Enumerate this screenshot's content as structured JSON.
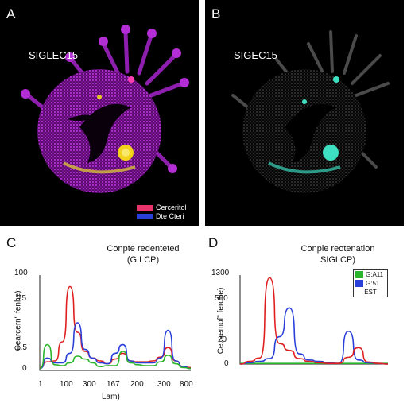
{
  "panelA": {
    "letter": "A",
    "label": "SIGLEC15",
    "legend": [
      {
        "label": "Cerceritol",
        "color": "#e8336b"
      },
      {
        "label": "Dte Cteri",
        "color": "#2a3fd8"
      }
    ]
  },
  "panelB": {
    "letter": "B",
    "label": "SIGEC15"
  },
  "panelC": {
    "letter": "C",
    "title_line1": "Conpte redenteted",
    "title_line2": "(GILCP)",
    "ylabel": "Cearcern\" fenhe)",
    "xlabel": "Lam)",
    "y_ticks": [
      "100",
      "75",
      "1.5",
      "0"
    ],
    "x_ticks": [
      "1",
      "100",
      "300",
      "167",
      "200",
      "300",
      "800"
    ]
  },
  "panelD": {
    "letter": "D",
    "title_line1": "Conple reotenation",
    "title_line2": "SIGLCP)",
    "ylabel": "Cecaemof\" ferohe)",
    "y_ticks": [
      "1300",
      "500",
      "20",
      "0"
    ],
    "legend": [
      {
        "label": "G:A11",
        "color": "#2bb52b"
      },
      {
        "label": "G:51",
        "color": "#2a3fd8"
      },
      {
        "label": "EST",
        "color": "#ffffff"
      }
    ]
  },
  "chart_data": [
    {
      "type": "line",
      "title": "Conpte redenteted (GILCP)",
      "xlabel": "Lam)",
      "ylabel": "Cearcern\" fenhe)",
      "ylim": [
        0,
        100
      ],
      "x": [
        0,
        20,
        40,
        60,
        80,
        100,
        120,
        140,
        160,
        180,
        200,
        220,
        240,
        260,
        280,
        300,
        320,
        340,
        360,
        380,
        400
      ],
      "series": [
        {
          "color": "#e02020",
          "values": [
            3,
            9,
            10,
            30,
            88,
            40,
            20,
            13,
            10,
            7,
            12,
            18,
            10,
            9,
            9,
            10,
            14,
            24,
            10,
            4,
            3
          ]
        },
        {
          "color": "#2a3fd8",
          "values": [
            2,
            13,
            8,
            8,
            18,
            50,
            22,
            13,
            8,
            7,
            18,
            27,
            10,
            8,
            8,
            8,
            13,
            42,
            10,
            4,
            2
          ]
        },
        {
          "color": "#2bb52b",
          "values": [
            2,
            27,
            6,
            5,
            8,
            15,
            12,
            8,
            4,
            5,
            5,
            20,
            8,
            6,
            5,
            5,
            9,
            16,
            7,
            3,
            2
          ]
        }
      ]
    },
    {
      "type": "line",
      "title": "Conple reotenation SIGLCP)",
      "ylabel": "Cecaemof\" ferohe)",
      "ylim": [
        0,
        1300
      ],
      "x": [
        0,
        20,
        40,
        60,
        80,
        100,
        120,
        140,
        160,
        180,
        200,
        220,
        240,
        260,
        280,
        300
      ],
      "series": [
        {
          "name": "G:A11",
          "color": "#2bb52b",
          "values": [
            10,
            10,
            10,
            10,
            10,
            10,
            10,
            10,
            10,
            10,
            10,
            10,
            10,
            10,
            10,
            10
          ]
        },
        {
          "name": "G:51",
          "color": "#2a3fd8",
          "values": [
            0,
            20,
            40,
            80,
            400,
            820,
            150,
            60,
            40,
            20,
            10,
            480,
            60,
            20,
            10,
            0
          ]
        },
        {
          "name": "EST",
          "color": "#e02020",
          "values": [
            0,
            40,
            90,
            1260,
            300,
            200,
            80,
            40,
            20,
            10,
            10,
            100,
            240,
            30,
            10,
            0
          ]
        }
      ]
    }
  ]
}
